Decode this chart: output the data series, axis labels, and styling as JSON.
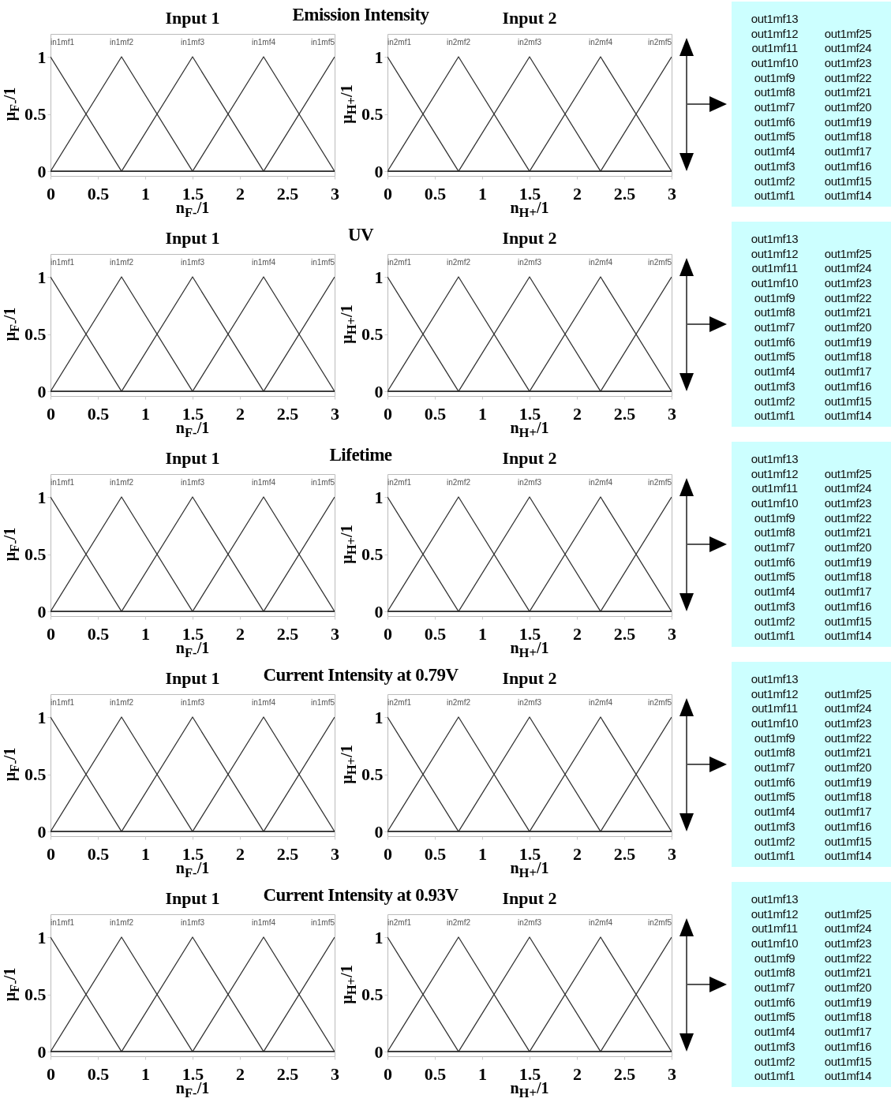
{
  "chart_data": [
    {
      "type": "line",
      "title": "Input 1",
      "annotations": [
        "Emission Intensity"
      ],
      "xlabel": "n$_{F-}$/1",
      "ylabel": "μ$_{F-}$/1",
      "xlim": [
        0,
        3
      ],
      "ylim": [
        -0.04,
        1.2
      ],
      "xticks": [
        0,
        0.5,
        1,
        1.5,
        2,
        2.5,
        3
      ],
      "yticks": [
        0,
        0.5,
        1
      ],
      "series": [
        {
          "name": "in1mf1",
          "color": "#333333",
          "x": [
            0,
            0.75,
            3
          ],
          "values": [
            1,
            0,
            0
          ]
        },
        {
          "name": "in1mf2",
          "color": "#333333",
          "x": [
            0,
            0.75,
            1.5,
            3
          ],
          "values": [
            0,
            1,
            0,
            0
          ]
        },
        {
          "name": "in1mf3",
          "color": "#333333",
          "x": [
            0,
            0.75,
            1.5,
            2.25,
            3
          ],
          "values": [
            0,
            0,
            1,
            0,
            0
          ]
        },
        {
          "name": "in1mf4",
          "color": "#333333",
          "x": [
            0,
            1.5,
            2.25,
            3
          ],
          "values": [
            0,
            0,
            1,
            0
          ]
        },
        {
          "name": "in1mf5",
          "color": "#333333",
          "x": [
            0,
            2.25,
            3
          ],
          "values": [
            0,
            0,
            1
          ]
        }
      ]
    },
    {
      "type": "line",
      "title": "Input 2",
      "xlabel": "n$_{H+}$/1",
      "ylabel": "μ$_{H+}$/1",
      "xlim": [
        0,
        3
      ],
      "ylim": [
        -0.04,
        1.2
      ],
      "xticks": [
        0,
        0.5,
        1,
        1.5,
        2,
        2.5,
        3
      ],
      "yticks": [
        0,
        0.5,
        1
      ],
      "series": [
        {
          "name": "in2mf1",
          "color": "#333333",
          "x": [
            0,
            0.75,
            3
          ],
          "values": [
            1,
            0,
            0
          ]
        },
        {
          "name": "in2mf2",
          "color": "#333333",
          "x": [
            0,
            0.75,
            1.5,
            3
          ],
          "values": [
            0,
            1,
            0,
            0
          ]
        },
        {
          "name": "in2mf3",
          "color": "#333333",
          "x": [
            0,
            0.75,
            1.5,
            2.25,
            3
          ],
          "values": [
            0,
            0,
            1,
            0,
            0
          ]
        },
        {
          "name": "in2mf4",
          "color": "#333333",
          "x": [
            0,
            1.5,
            2.25,
            3
          ],
          "values": [
            0,
            0,
            1,
            0
          ]
        },
        {
          "name": "in2mf5",
          "color": "#333333",
          "x": [
            0,
            2.25,
            3
          ],
          "values": [
            0,
            0,
            1
          ]
        }
      ]
    },
    {
      "type": "other",
      "annotations": [
        "out1mf13",
        "out1mf12",
        "out1mf11",
        "out1mf10",
        "out1mf9",
        "out1mf8",
        "out1mf7",
        "out1mf6",
        "out1mf5",
        "out1mf4",
        "out1mf3",
        "out1mf2",
        "out1mf1",
        "out1mf25",
        "out1mf24",
        "out1mf23",
        "out1mf22",
        "out1mf21",
        "out1mf20",
        "out1mf19",
        "out1mf18",
        "out1mf17",
        "out1mf16",
        "out1mf15",
        "out1mf14"
      ]
    },
    {
      "type": "line",
      "title": "Input 1",
      "annotations": [
        "UV"
      ],
      "xlabel": "n$_{F-}$/1",
      "ylabel": "μ$_{F-}$/1",
      "xlim": [
        0,
        3
      ],
      "ylim": [
        -0.04,
        1.2
      ],
      "xticks": [
        0,
        0.5,
        1,
        1.5,
        2,
        2.5,
        3
      ],
      "yticks": [
        0,
        0.5,
        1
      ],
      "series": [
        {
          "name": "in1mf1",
          "color": "#333333",
          "x": [
            0,
            0.75,
            3
          ],
          "values": [
            1,
            0,
            0
          ]
        },
        {
          "name": "in1mf2",
          "color": "#333333",
          "x": [
            0,
            0.75,
            1.5,
            3
          ],
          "values": [
            0,
            1,
            0,
            0
          ]
        },
        {
          "name": "in1mf3",
          "color": "#333333",
          "x": [
            0,
            0.75,
            1.5,
            2.25,
            3
          ],
          "values": [
            0,
            0,
            1,
            0,
            0
          ]
        },
        {
          "name": "in1mf4",
          "color": "#333333",
          "x": [
            0,
            1.5,
            2.25,
            3
          ],
          "values": [
            0,
            0,
            1,
            0
          ]
        },
        {
          "name": "in1mf5",
          "color": "#333333",
          "x": [
            0,
            2.25,
            3
          ],
          "values": [
            0,
            0,
            1
          ]
        }
      ]
    },
    {
      "type": "line",
      "title": "Input 2",
      "xlabel": "n$_{H+}$/1",
      "ylabel": "μ$_{H+}$/1",
      "xlim": [
        0,
        3
      ],
      "ylim": [
        -0.04,
        1.2
      ],
      "xticks": [
        0,
        0.5,
        1,
        1.5,
        2,
        2.5,
        3
      ],
      "yticks": [
        0,
        0.5,
        1
      ],
      "series": [
        {
          "name": "in2mf1",
          "color": "#333333",
          "x": [
            0,
            0.75,
            3
          ],
          "values": [
            1,
            0,
            0
          ]
        },
        {
          "name": "in2mf2",
          "color": "#333333",
          "x": [
            0,
            0.75,
            1.5,
            3
          ],
          "values": [
            0,
            1,
            0,
            0
          ]
        },
        {
          "name": "in2mf3",
          "color": "#333333",
          "x": [
            0,
            0.75,
            1.5,
            2.25,
            3
          ],
          "values": [
            0,
            0,
            1,
            0,
            0
          ]
        },
        {
          "name": "in2mf4",
          "color": "#333333",
          "x": [
            0,
            1.5,
            2.25,
            3
          ],
          "values": [
            0,
            0,
            1,
            0
          ]
        },
        {
          "name": "in2mf5",
          "color": "#333333",
          "x": [
            0,
            2.25,
            3
          ],
          "values": [
            0,
            0,
            1
          ]
        }
      ]
    },
    {
      "type": "other",
      "annotations": [
        "out1mf13",
        "out1mf12",
        "out1mf11",
        "out1mf10",
        "out1mf9",
        "out1mf8",
        "out1mf7",
        "out1mf6",
        "out1mf5",
        "out1mf4",
        "out1mf3",
        "out1mf2",
        "out1mf1",
        "out1mf25",
        "out1mf24",
        "out1mf23",
        "out1mf22",
        "out1mf21",
        "out1mf20",
        "out1mf19",
        "out1mf18",
        "out1mf17",
        "out1mf16",
        "out1mf15",
        "out1mf14"
      ]
    },
    {
      "type": "line",
      "title": "Input 1",
      "annotations": [
        "Lifetime"
      ],
      "xlabel": "n$_{F-}$/1",
      "ylabel": "μ$_{F-}$/1",
      "xlim": [
        0,
        3
      ],
      "ylim": [
        -0.04,
        1.2
      ],
      "xticks": [
        0,
        0.5,
        1,
        1.5,
        2,
        2.5,
        3
      ],
      "yticks": [
        0,
        0.5,
        1
      ],
      "series": [
        {
          "name": "in1mf1",
          "color": "#333333",
          "x": [
            0,
            0.75,
            3
          ],
          "values": [
            1,
            0,
            0
          ]
        },
        {
          "name": "in1mf2",
          "color": "#333333",
          "x": [
            0,
            0.75,
            1.5,
            3
          ],
          "values": [
            0,
            1,
            0,
            0
          ]
        },
        {
          "name": "in1mf3",
          "color": "#333333",
          "x": [
            0,
            0.75,
            1.5,
            2.25,
            3
          ],
          "values": [
            0,
            0,
            1,
            0,
            0
          ]
        },
        {
          "name": "in1mf4",
          "color": "#333333",
          "x": [
            0,
            1.5,
            2.25,
            3
          ],
          "values": [
            0,
            0,
            1,
            0
          ]
        },
        {
          "name": "in1mf5",
          "color": "#333333",
          "x": [
            0,
            2.25,
            3
          ],
          "values": [
            0,
            0,
            1
          ]
        }
      ]
    },
    {
      "type": "line",
      "title": "Input 2",
      "xlabel": "n$_{H+}$/1",
      "ylabel": "μ$_{H+}$/1",
      "xlim": [
        0,
        3
      ],
      "ylim": [
        -0.04,
        1.2
      ],
      "xticks": [
        0,
        0.5,
        1,
        1.5,
        2,
        2.5,
        3
      ],
      "yticks": [
        0,
        0.5,
        1
      ],
      "series": [
        {
          "name": "in2mf1",
          "color": "#333333",
          "x": [
            0,
            0.75,
            3
          ],
          "values": [
            1,
            0,
            0
          ]
        },
        {
          "name": "in2mf2",
          "color": "#333333",
          "x": [
            0,
            0.75,
            1.5,
            3
          ],
          "values": [
            0,
            1,
            0,
            0
          ]
        },
        {
          "name": "in2mf3",
          "color": "#333333",
          "x": [
            0,
            0.75,
            1.5,
            2.25,
            3
          ],
          "values": [
            0,
            0,
            1,
            0,
            0
          ]
        },
        {
          "name": "in2mf4",
          "color": "#333333",
          "x": [
            0,
            1.5,
            2.25,
            3
          ],
          "values": [
            0,
            0,
            1,
            0
          ]
        },
        {
          "name": "in2mf5",
          "color": "#333333",
          "x": [
            0,
            2.25,
            3
          ],
          "values": [
            0,
            0,
            1
          ]
        }
      ]
    },
    {
      "type": "other",
      "annotations": [
        "out1mf13",
        "out1mf12",
        "out1mf11",
        "out1mf10",
        "out1mf9",
        "out1mf8",
        "out1mf7",
        "out1mf6",
        "out1mf5",
        "out1mf4",
        "out1mf3",
        "out1mf2",
        "out1mf1",
        "out1mf25",
        "out1mf24",
        "out1mf23",
        "out1mf22",
        "out1mf21",
        "out1mf20",
        "out1mf19",
        "out1mf18",
        "out1mf17",
        "out1mf16",
        "out1mf15",
        "out1mf14"
      ]
    },
    {
      "type": "line",
      "title": "Input 1",
      "annotations": [
        "Current Intensity at 0.79V"
      ],
      "xlabel": "n$_{F-}$/1",
      "ylabel": "μ$_{F-}$/1",
      "xlim": [
        0,
        3
      ],
      "ylim": [
        -0.04,
        1.2
      ],
      "xticks": [
        0,
        0.5,
        1,
        1.5,
        2,
        2.5,
        3
      ],
      "yticks": [
        0,
        0.5,
        1
      ],
      "series": [
        {
          "name": "in1mf1",
          "color": "#333333",
          "x": [
            0,
            0.75,
            3
          ],
          "values": [
            1,
            0,
            0
          ]
        },
        {
          "name": "in1mf2",
          "color": "#333333",
          "x": [
            0,
            0.75,
            1.5,
            3
          ],
          "values": [
            0,
            1,
            0,
            0
          ]
        },
        {
          "name": "in1mf3",
          "color": "#333333",
          "x": [
            0,
            0.75,
            1.5,
            2.25,
            3
          ],
          "values": [
            0,
            0,
            1,
            0,
            0
          ]
        },
        {
          "name": "in1mf4",
          "color": "#333333",
          "x": [
            0,
            1.5,
            2.25,
            3
          ],
          "values": [
            0,
            0,
            1,
            0
          ]
        },
        {
          "name": "in1mf5",
          "color": "#333333",
          "x": [
            0,
            2.25,
            3
          ],
          "values": [
            0,
            0,
            1
          ]
        }
      ]
    },
    {
      "type": "line",
      "title": "Input 2",
      "xlabel": "n$_{H+}$/1",
      "ylabel": "μ$_{H+}$/1",
      "xlim": [
        0,
        3
      ],
      "ylim": [
        -0.04,
        1.2
      ],
      "xticks": [
        0,
        0.5,
        1,
        1.5,
        2,
        2.5,
        3
      ],
      "yticks": [
        0,
        0.5,
        1
      ],
      "series": [
        {
          "name": "in2mf1",
          "color": "#333333",
          "x": [
            0,
            0.75,
            3
          ],
          "values": [
            1,
            0,
            0
          ]
        },
        {
          "name": "in2mf2",
          "color": "#333333",
          "x": [
            0,
            0.75,
            1.5,
            3
          ],
          "values": [
            0,
            1,
            0,
            0
          ]
        },
        {
          "name": "in2mf3",
          "color": "#333333",
          "x": [
            0,
            0.75,
            1.5,
            2.25,
            3
          ],
          "values": [
            0,
            0,
            1,
            0,
            0
          ]
        },
        {
          "name": "in2mf4",
          "color": "#333333",
          "x": [
            0,
            1.5,
            2.25,
            3
          ],
          "values": [
            0,
            0,
            1,
            0
          ]
        },
        {
          "name": "in2mf5",
          "color": "#333333",
          "x": [
            0,
            2.25,
            3
          ],
          "values": [
            0,
            0,
            1
          ]
        }
      ]
    },
    {
      "type": "other",
      "annotations": [
        "out1mf13",
        "out1mf12",
        "out1mf11",
        "out1mf10",
        "out1mf9",
        "out1mf8",
        "out1mf7",
        "out1mf6",
        "out1mf5",
        "out1mf4",
        "out1mf3",
        "out1mf2",
        "out1mf1",
        "out1mf25",
        "out1mf24",
        "out1mf23",
        "out1mf22",
        "out1mf21",
        "out1mf20",
        "out1mf19",
        "out1mf18",
        "out1mf17",
        "out1mf16",
        "out1mf15",
        "out1mf14"
      ]
    },
    {
      "type": "line",
      "title": "Input 1",
      "annotations": [
        "Current Intensity at 0.93V"
      ],
      "xlabel": "n$_{F-}$/1",
      "ylabel": "μ$_{F-}$/1",
      "xlim": [
        0,
        3
      ],
      "ylim": [
        -0.04,
        1.2
      ],
      "xticks": [
        0,
        0.5,
        1,
        1.5,
        2,
        2.5,
        3
      ],
      "yticks": [
        0,
        0.5,
        1
      ],
      "series": [
        {
          "name": "in1mf1",
          "color": "#333333",
          "x": [
            0,
            0.75,
            3
          ],
          "values": [
            1,
            0,
            0
          ]
        },
        {
          "name": "in1mf2",
          "color": "#333333",
          "x": [
            0,
            0.75,
            1.5,
            3
          ],
          "values": [
            0,
            1,
            0,
            0
          ]
        },
        {
          "name": "in1mf3",
          "color": "#333333",
          "x": [
            0,
            0.75,
            1.5,
            2.25,
            3
          ],
          "values": [
            0,
            0,
            1,
            0,
            0
          ]
        },
        {
          "name": "in1mf4",
          "color": "#333333",
          "x": [
            0,
            1.5,
            2.25,
            3
          ],
          "values": [
            0,
            0,
            1,
            0
          ]
        },
        {
          "name": "in1mf5",
          "color": "#333333",
          "x": [
            0,
            2.25,
            3
          ],
          "values": [
            0,
            0,
            1
          ]
        }
      ]
    },
    {
      "type": "line",
      "title": "Input 2",
      "xlabel": "n$_{H+}$/1",
      "ylabel": "μ$_{H+}$/1",
      "xlim": [
        0,
        3
      ],
      "ylim": [
        -0.04,
        1.2
      ],
      "xticks": [
        0,
        0.5,
        1,
        1.5,
        2,
        2.5,
        3
      ],
      "yticks": [
        0,
        0.5,
        1
      ],
      "series": [
        {
          "name": "in2mf1",
          "color": "#333333",
          "x": [
            0,
            0.75,
            3
          ],
          "values": [
            1,
            0,
            0
          ]
        },
        {
          "name": "in2mf2",
          "color": "#333333",
          "x": [
            0,
            0.75,
            1.5,
            3
          ],
          "values": [
            0,
            1,
            0,
            0
          ]
        },
        {
          "name": "in2mf3",
          "color": "#333333",
          "x": [
            0,
            0.75,
            1.5,
            2.25,
            3
          ],
          "values": [
            0,
            0,
            1,
            0,
            0
          ]
        },
        {
          "name": "in2mf4",
          "color": "#333333",
          "x": [
            0,
            1.5,
            2.25,
            3
          ],
          "values": [
            0,
            0,
            1,
            0
          ]
        },
        {
          "name": "in2mf5",
          "color": "#333333",
          "x": [
            0,
            2.25,
            3
          ],
          "values": [
            0,
            0,
            1
          ]
        }
      ]
    },
    {
      "type": "other",
      "annotations": [
        "out1mf13",
        "out1mf12",
        "out1mf11",
        "out1mf10",
        "out1mf9",
        "out1mf8",
        "out1mf7",
        "out1mf6",
        "out1mf5",
        "out1mf4",
        "out1mf3",
        "out1mf2",
        "out1mf1",
        "out1mf25",
        "out1mf24",
        "out1mf23",
        "out1mf22",
        "out1mf21",
        "out1mf20",
        "out1mf19",
        "out1mf18",
        "out1mf17",
        "out1mf16",
        "out1mf15",
        "out1mf14"
      ]
    }
  ]
}
